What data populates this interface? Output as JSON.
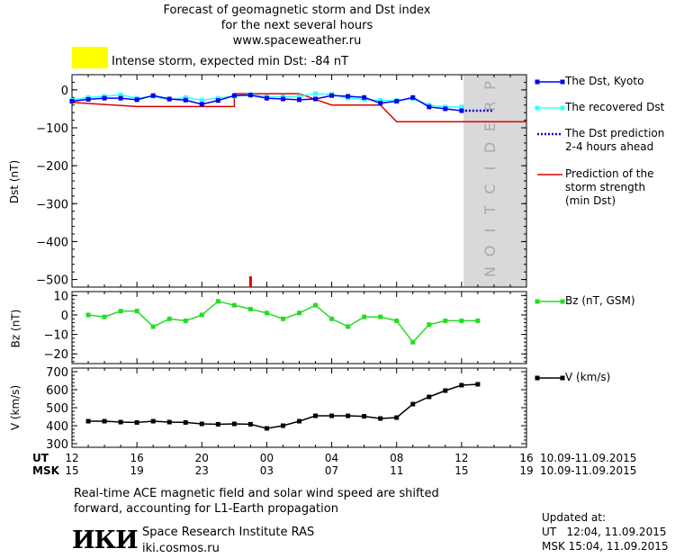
{
  "header": {
    "title_line1": "Forecast of geomagnetic storm and Dst index",
    "title_line2": "for the next several hours",
    "url": "www.spaceweather.ru",
    "alert_text": "Intense storm, expected min Dst: -84 nT",
    "alert_color": "#ffff00"
  },
  "prediction_label": "PREDICTION",
  "legend": {
    "dst_kyoto": "The Dst, Kyoto",
    "recovered": "The recovered Dst",
    "prediction_l1": "The Dst prediction",
    "prediction_l2": "2-4 hours ahead",
    "strength_l1": "Prediction of the",
    "strength_l2": "storm strength",
    "strength_l3": "(min Dst)",
    "bz": "Bz (nT, GSM)",
    "v": "V (km/s)"
  },
  "axes": {
    "dst_ylabel": "Dst (nT)",
    "bz_ylabel": "Bz (nT)",
    "v_ylabel": "V (km/s)",
    "ut_label": "UT",
    "msk_label": "MSK",
    "ut_ticks": [
      "12",
      "16",
      "20",
      "00",
      "04",
      "08",
      "12",
      "16"
    ],
    "msk_ticks": [
      "15",
      "19",
      "23",
      "03",
      "07",
      "11",
      "15",
      "19"
    ],
    "date_range_ut": "10.09-11.09.2015",
    "date_range_msk": "10.09-11.09.2015"
  },
  "footer": {
    "note_l1": "Real-time ACE magnetic field and solar wind speed are shifted",
    "note_l2": "forward, accounting for L1-Earth propagation",
    "logo_text": "ИКИ",
    "institute": "Space Research Institute RAS",
    "site": "iki.cosmos.ru",
    "updated_label": "Updated at:",
    "updated_ut": "UT   12:04, 11.09.2015",
    "updated_msk": "MSK 15:04, 11.09.2015"
  },
  "colors": {
    "dst_kyoto": "#0000ee",
    "recovered": "#33ffff",
    "prediction": "#0000cc",
    "strength": "#dd0000",
    "bz": "#22dd22",
    "v": "#000000",
    "prediction_band": "#d9d9d9"
  },
  "chart_data": [
    {
      "type": "line",
      "name": "Dst panel",
      "xlabel": "UT (hours from 12 UT, 10.09.2015)",
      "ylabel": "Dst (nT)",
      "xlim": [
        0,
        28
      ],
      "ylim": [
        -520,
        40
      ],
      "yticks": [
        0,
        -100,
        -200,
        -300,
        -400,
        -500
      ],
      "prediction_start": 24,
      "series": [
        {
          "name": "The Dst, Kyoto",
          "x": [
            0,
            1,
            2,
            3,
            4,
            5,
            6,
            7,
            8,
            9,
            10,
            11,
            12,
            13,
            14,
            15,
            16,
            17,
            18,
            19,
            20,
            21,
            22,
            23,
            24
          ],
          "y": [
            -30,
            -25,
            -22,
            -22,
            -26,
            -15,
            -24,
            -27,
            -38,
            -28,
            -15,
            -14,
            -22,
            -24,
            -26,
            -24,
            -15,
            -17,
            -20,
            -35,
            -30,
            -20,
            -45,
            -50,
            -55
          ]
        },
        {
          "name": "The recovered Dst",
          "x": [
            0,
            1,
            2,
            3,
            4,
            5,
            6,
            7,
            8,
            9,
            10,
            11,
            12,
            13,
            14,
            15,
            16,
            17,
            18,
            19,
            20,
            21,
            22,
            23,
            24
          ],
          "y": [
            -27,
            -20,
            -17,
            -13,
            -22,
            -17,
            -26,
            -20,
            -27,
            -22,
            -17,
            -12,
            -18,
            -18,
            -17,
            -10,
            -12,
            -22,
            -25,
            -28,
            -28,
            -23,
            -40,
            -45,
            -45
          ]
        },
        {
          "name": "The Dst prediction 2-4 hours ahead",
          "x": [
            24,
            25,
            26
          ],
          "y": [
            -55,
            -55,
            -55
          ]
        },
        {
          "name": "Prediction of the storm strength (min Dst)",
          "x": [
            0,
            4,
            10,
            10,
            14,
            16,
            19,
            20,
            28
          ],
          "y": [
            -33,
            -44,
            -44,
            -10,
            -10,
            -40,
            -40,
            -84,
            -84
          ]
        }
      ],
      "marker_x": 11
    },
    {
      "type": "line",
      "name": "Bz (nT, GSM)",
      "ylabel": "Bz (nT)",
      "xlim": [
        0,
        28
      ],
      "ylim": [
        -25,
        12
      ],
      "yticks": [
        10,
        0,
        -10,
        -20
      ],
      "x": [
        1,
        2,
        3,
        4,
        5,
        6,
        7,
        8,
        9,
        10,
        11,
        12,
        13,
        14,
        15,
        16,
        17,
        18,
        19,
        20,
        21,
        22,
        23,
        24,
        25
      ],
      "y": [
        0,
        -1,
        2,
        2,
        -6,
        -2,
        -3,
        0,
        7,
        5,
        3,
        1,
        -2,
        1,
        5,
        -2,
        -6,
        -1,
        -1,
        -3,
        -14,
        -5,
        -3,
        -3,
        -3
      ]
    },
    {
      "type": "line",
      "name": "V (km/s)",
      "ylabel": "V (km/s)",
      "xlim": [
        0,
        28
      ],
      "ylim": [
        280,
        720
      ],
      "yticks": [
        700,
        600,
        500,
        400,
        300
      ],
      "x": [
        1,
        2,
        3,
        4,
        5,
        6,
        7,
        8,
        9,
        10,
        11,
        12,
        13,
        14,
        15,
        16,
        17,
        18,
        19,
        20,
        21,
        22,
        23,
        24,
        25
      ],
      "y": [
        425,
        425,
        420,
        418,
        425,
        420,
        418,
        410,
        408,
        410,
        408,
        385,
        400,
        425,
        455,
        455,
        455,
        452,
        440,
        445,
        520,
        560,
        595,
        625,
        630
      ]
    }
  ]
}
